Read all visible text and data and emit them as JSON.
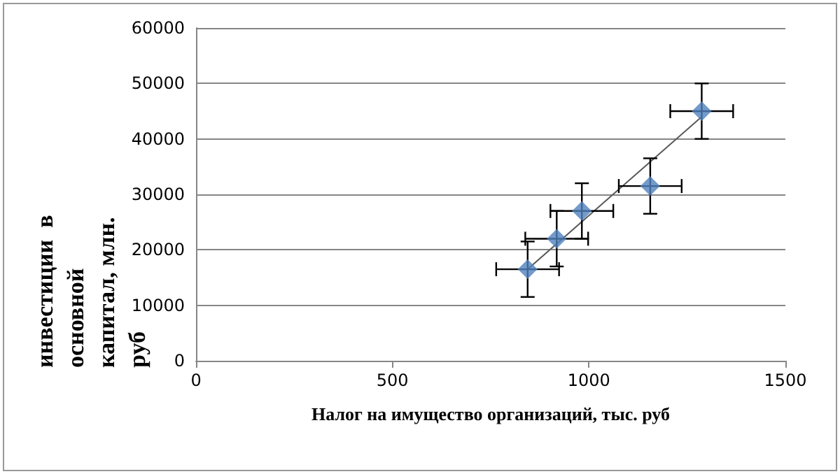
{
  "chart_data": {
    "type": "scatter",
    "xlabel": "Налог на имущество организаций, тыс. руб",
    "ylabel": "инвестиции  в основной капитал, млн. руб",
    "x": [
      844,
      918,
      982,
      1156,
      1287
    ],
    "series": [
      {
        "color": "#4f81bd",
        "values": [
          16500,
          22000,
          27000,
          31500,
          45000
        ],
        "errors": [
          5000,
          5000,
          5000,
          5000,
          5000
        ],
        "xerrors": [
          80,
          80,
          80,
          80,
          80
        ],
        "marker": "diamond"
      },
      {
        "type": "line",
        "color": "#595959",
        "x": [
          844,
          1287
        ],
        "values": [
          16500,
          44000
        ],
        "marker": "none",
        "line_style": "solid"
      }
    ],
    "xlim": [
      0,
      1500
    ],
    "xticks": [
      0,
      500,
      1000,
      1500
    ],
    "ylim": [
      0,
      60000
    ],
    "yticks": [
      0,
      10000,
      20000,
      30000,
      40000,
      50000,
      60000
    ],
    "grid": "y"
  }
}
